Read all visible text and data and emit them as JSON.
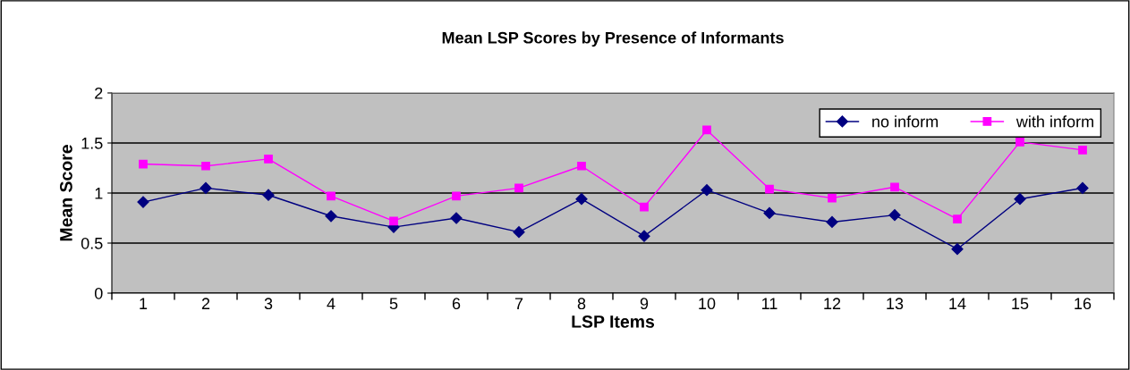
{
  "chart_data": {
    "type": "line",
    "title": "Mean LSP Scores by Presence of Informants",
    "xlabel": "LSP Items",
    "ylabel": "Mean Score",
    "categories": [
      "1",
      "2",
      "3",
      "4",
      "5",
      "6",
      "7",
      "8",
      "9",
      "10",
      "11",
      "12",
      "13",
      "14",
      "15",
      "16"
    ],
    "series": [
      {
        "name": "no inform",
        "color": "#000080",
        "marker": "diamond",
        "values": [
          0.91,
          1.05,
          0.98,
          0.77,
          0.66,
          0.75,
          0.61,
          0.94,
          0.57,
          1.03,
          0.8,
          0.71,
          0.78,
          0.44,
          0.94,
          1.05
        ]
      },
      {
        "name": "with inform",
        "color": "#ff00ff",
        "marker": "square",
        "values": [
          1.29,
          1.27,
          1.34,
          0.97,
          0.72,
          0.97,
          1.05,
          1.27,
          0.86,
          1.63,
          1.04,
          0.95,
          1.06,
          0.74,
          1.51,
          1.43
        ]
      }
    ],
    "ylim": [
      0,
      2
    ],
    "yticks": [
      0,
      0.5,
      1,
      1.5,
      2
    ],
    "grid": "y",
    "legend": "top right"
  }
}
